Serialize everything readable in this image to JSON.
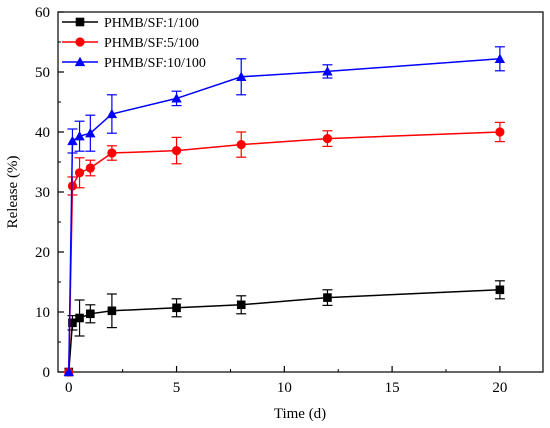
{
  "chart_data": {
    "type": "line",
    "xlabel": "Time (d)",
    "ylabel": "Release (%)",
    "xlim": [
      -0.5,
      22
    ],
    "ylim": [
      0,
      60
    ],
    "xticks": [
      0,
      5,
      10,
      15,
      20
    ],
    "yticks": [
      0,
      10,
      20,
      30,
      40,
      50,
      60
    ],
    "grid": false,
    "legend_position": "top-left",
    "series": [
      {
        "name": "PHMB/SF:1/100",
        "color": "#000000",
        "marker": "square",
        "x": [
          0,
          0.17,
          0.5,
          1,
          2,
          5,
          8,
          12,
          20
        ],
        "y": [
          0,
          8.2,
          9.0,
          9.7,
          10.2,
          10.7,
          11.2,
          12.4,
          13.7
        ],
        "error": [
          0,
          1.2,
          3.0,
          1.5,
          2.8,
          1.5,
          1.5,
          1.3,
          1.5
        ]
      },
      {
        "name": "PHMB/SF:5/100",
        "color": "#ff0000",
        "marker": "circle",
        "x": [
          0,
          0.17,
          0.5,
          1,
          2,
          5,
          8,
          12,
          20
        ],
        "y": [
          0,
          31.0,
          33.2,
          34.0,
          36.5,
          36.9,
          37.9,
          38.9,
          40.0
        ],
        "error": [
          0,
          1.5,
          2.5,
          1.3,
          1.2,
          2.2,
          2.1,
          1.3,
          1.6
        ]
      },
      {
        "name": "PHMB/SF:10/100",
        "color": "#0000ff",
        "marker": "triangle",
        "x": [
          0,
          0.17,
          0.5,
          1,
          2,
          5,
          8,
          12,
          20
        ],
        "y": [
          0,
          38.5,
          39.3,
          39.8,
          43.0,
          45.6,
          49.2,
          50.1,
          52.2
        ],
        "error": [
          0,
          2.0,
          2.5,
          3.0,
          3.2,
          1.2,
          3.0,
          1.1,
          2.0
        ]
      }
    ]
  }
}
